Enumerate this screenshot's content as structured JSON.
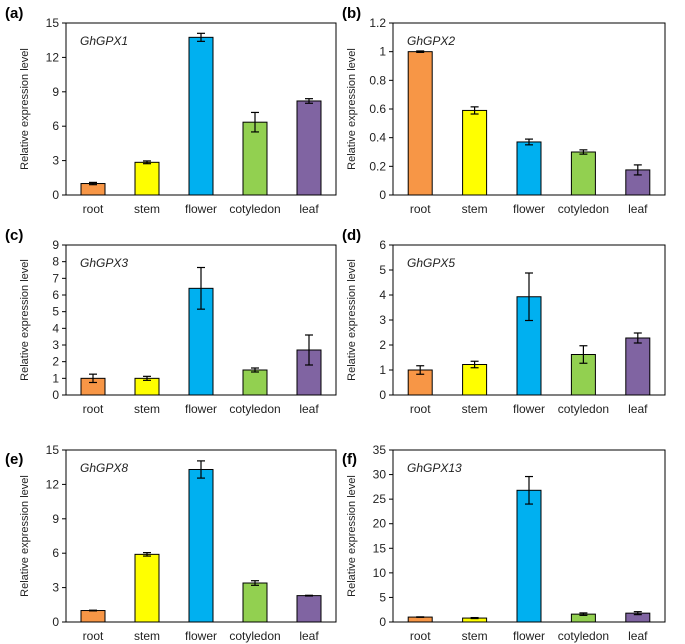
{
  "colors": {
    "root": "#f79646",
    "stem": "#ffff00",
    "flower": "#00b0f0",
    "cotyledon": "#92d050",
    "leaf": "#8064a2"
  },
  "chart_data": [
    {
      "type": "bar",
      "panel_label": "(a)",
      "annotation": "GhGPX1",
      "ylabel": "Relative expression level",
      "categories": [
        "root",
        "stem",
        "flower",
        "cotyledon",
        "leaf"
      ],
      "values": [
        1.0,
        2.85,
        13.75,
        6.35,
        8.2
      ],
      "errors": [
        0.1,
        0.12,
        0.35,
        0.85,
        0.2
      ],
      "ylim": [
        0,
        15
      ],
      "yticks": [
        0,
        3,
        6,
        9,
        12,
        15
      ]
    },
    {
      "type": "bar",
      "panel_label": "(b)",
      "annotation": "GhGPX2",
      "ylabel": "Relative expression level",
      "categories": [
        "root",
        "stem",
        "flower",
        "cotyledon",
        "leaf"
      ],
      "values": [
        1.0,
        0.59,
        0.37,
        0.3,
        0.175
      ],
      "errors": [
        0.005,
        0.025,
        0.02,
        0.015,
        0.035
      ],
      "ylim": [
        0,
        1.2
      ],
      "yticks": [
        0,
        0.2,
        0.4,
        0.6,
        0.8,
        1,
        1.2
      ]
    },
    {
      "type": "bar",
      "panel_label": "(c)",
      "annotation": "GhGPX3",
      "ylabel": "Relative expression level",
      "categories": [
        "root",
        "stem",
        "flower",
        "cotyledon",
        "leaf"
      ],
      "values": [
        1.0,
        1.0,
        6.4,
        1.5,
        2.7
      ],
      "errors": [
        0.25,
        0.12,
        1.25,
        0.12,
        0.9
      ],
      "ylim": [
        0,
        9
      ],
      "yticks": [
        0,
        1,
        2,
        3,
        4,
        5,
        6,
        7,
        8,
        9
      ]
    },
    {
      "type": "bar",
      "panel_label": "(d)",
      "annotation": "GhGPX5",
      "ylabel": "Relative expression level",
      "categories": [
        "root",
        "stem",
        "flower",
        "cotyledon",
        "leaf"
      ],
      "values": [
        1.0,
        1.22,
        3.93,
        1.62,
        2.28
      ],
      "errors": [
        0.17,
        0.13,
        0.95,
        0.35,
        0.2
      ],
      "ylim": [
        0,
        6
      ],
      "yticks": [
        0,
        1,
        2,
        3,
        4,
        5,
        6
      ]
    },
    {
      "type": "bar",
      "panel_label": "(e)",
      "annotation": "GhGPX8",
      "ylabel": "Relative expression level",
      "categories": [
        "root",
        "stem",
        "flower",
        "cotyledon",
        "leaf"
      ],
      "values": [
        1.0,
        5.9,
        13.3,
        3.4,
        2.3
      ],
      "errors": [
        0.03,
        0.15,
        0.75,
        0.2,
        0.03
      ],
      "ylim": [
        0,
        15
      ],
      "yticks": [
        0,
        3,
        6,
        9,
        12,
        15
      ]
    },
    {
      "type": "bar",
      "panel_label": "(f)",
      "annotation": "GhGPX13",
      "ylabel": "Relative expression level",
      "categories": [
        "root",
        "stem",
        "flower",
        "cotyledon",
        "leaf"
      ],
      "values": [
        1.0,
        0.8,
        26.8,
        1.6,
        1.8
      ],
      "errors": [
        0.05,
        0.1,
        2.8,
        0.25,
        0.3
      ],
      "ylim": [
        0,
        35
      ],
      "yticks": [
        0,
        5,
        10,
        15,
        20,
        25,
        30,
        35
      ]
    }
  ]
}
